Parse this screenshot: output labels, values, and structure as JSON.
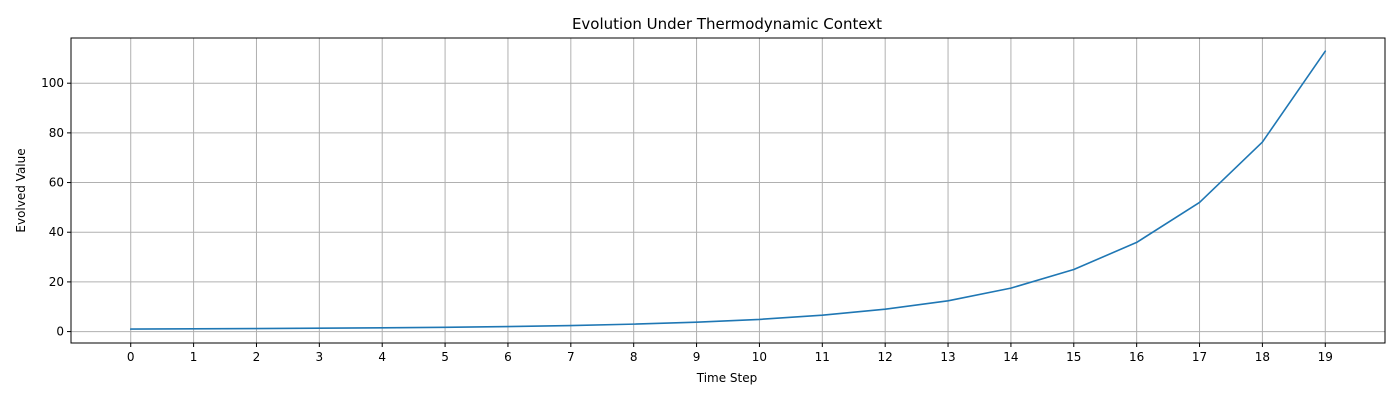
{
  "chart_data": {
    "type": "line",
    "title": "Evolution Under Thermodynamic Context",
    "xlabel": "Time Step",
    "ylabel": "Evolved Value",
    "x": [
      0,
      1,
      2,
      3,
      4,
      5,
      6,
      7,
      8,
      9,
      10,
      11,
      12,
      13,
      14,
      15,
      16,
      17,
      18,
      19
    ],
    "xticks": [
      0,
      1,
      2,
      3,
      4,
      5,
      6,
      7,
      8,
      9,
      10,
      11,
      12,
      13,
      14,
      15,
      16,
      17,
      18,
      19
    ],
    "yticks": [
      0,
      20,
      40,
      60,
      80,
      100
    ],
    "xlim": [
      -0.95,
      19.95
    ],
    "ylim": [
      -4.6,
      118.2
    ],
    "grid": true,
    "series": [
      {
        "color": "#1f77b4",
        "values": [
          1.0,
          1.1,
          1.2,
          1.35,
          1.5,
          1.7,
          2.0,
          2.4,
          3.0,
          3.8,
          4.9,
          6.6,
          9.0,
          12.4,
          17.5,
          25.0,
          35.9,
          52.0,
          76.3,
          112.9
        ]
      }
    ]
  }
}
